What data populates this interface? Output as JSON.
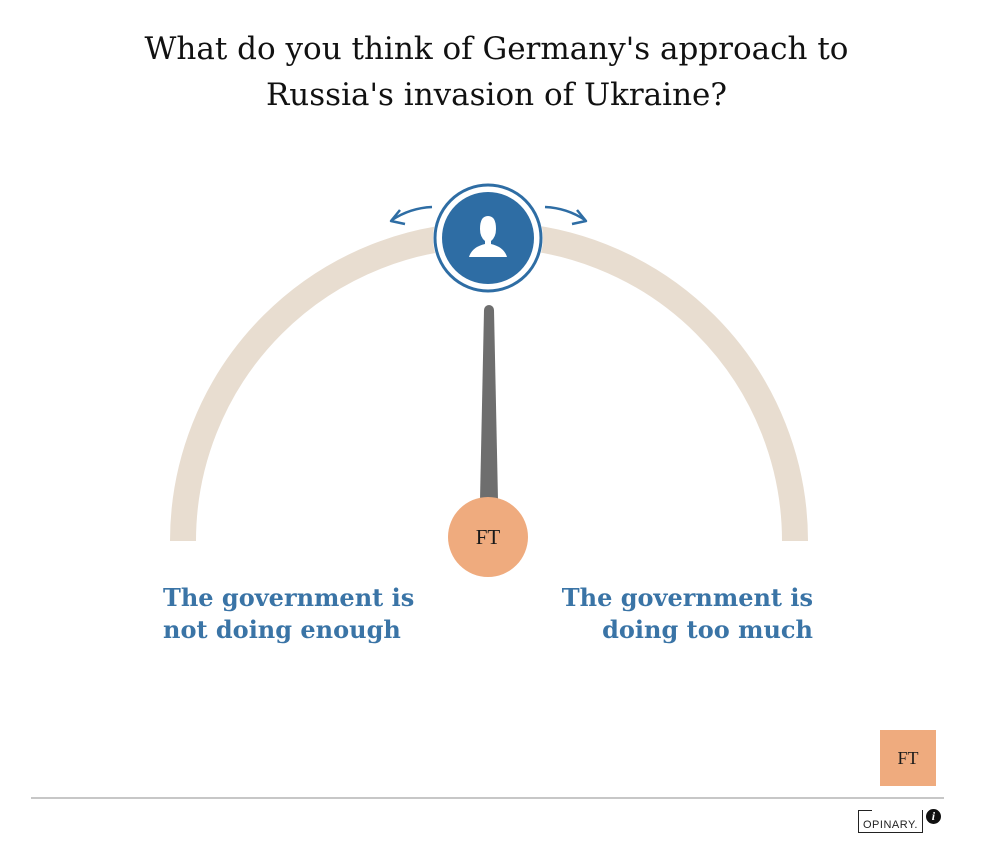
{
  "question": {
    "line1": "What do you think of Germany's approach to",
    "line2": "Russia's invasion of Ukraine?"
  },
  "gauge": {
    "needle_value": 0.5,
    "needle_label": "FT",
    "left_label_line1": "The government is",
    "left_label_line2": "not doing enough",
    "right_label_line1": "The government is",
    "right_label_line2": "doing too much",
    "handle_icon": "user-icon",
    "arc_color": "#e8ddd0",
    "handle_color": "#2e6da4",
    "needle_color": "#6e6e6e",
    "ft_color": "#efab7e"
  },
  "footer": {
    "brand_badge": "FT",
    "provider": "OPINARY.",
    "info_icon": "info-icon"
  }
}
